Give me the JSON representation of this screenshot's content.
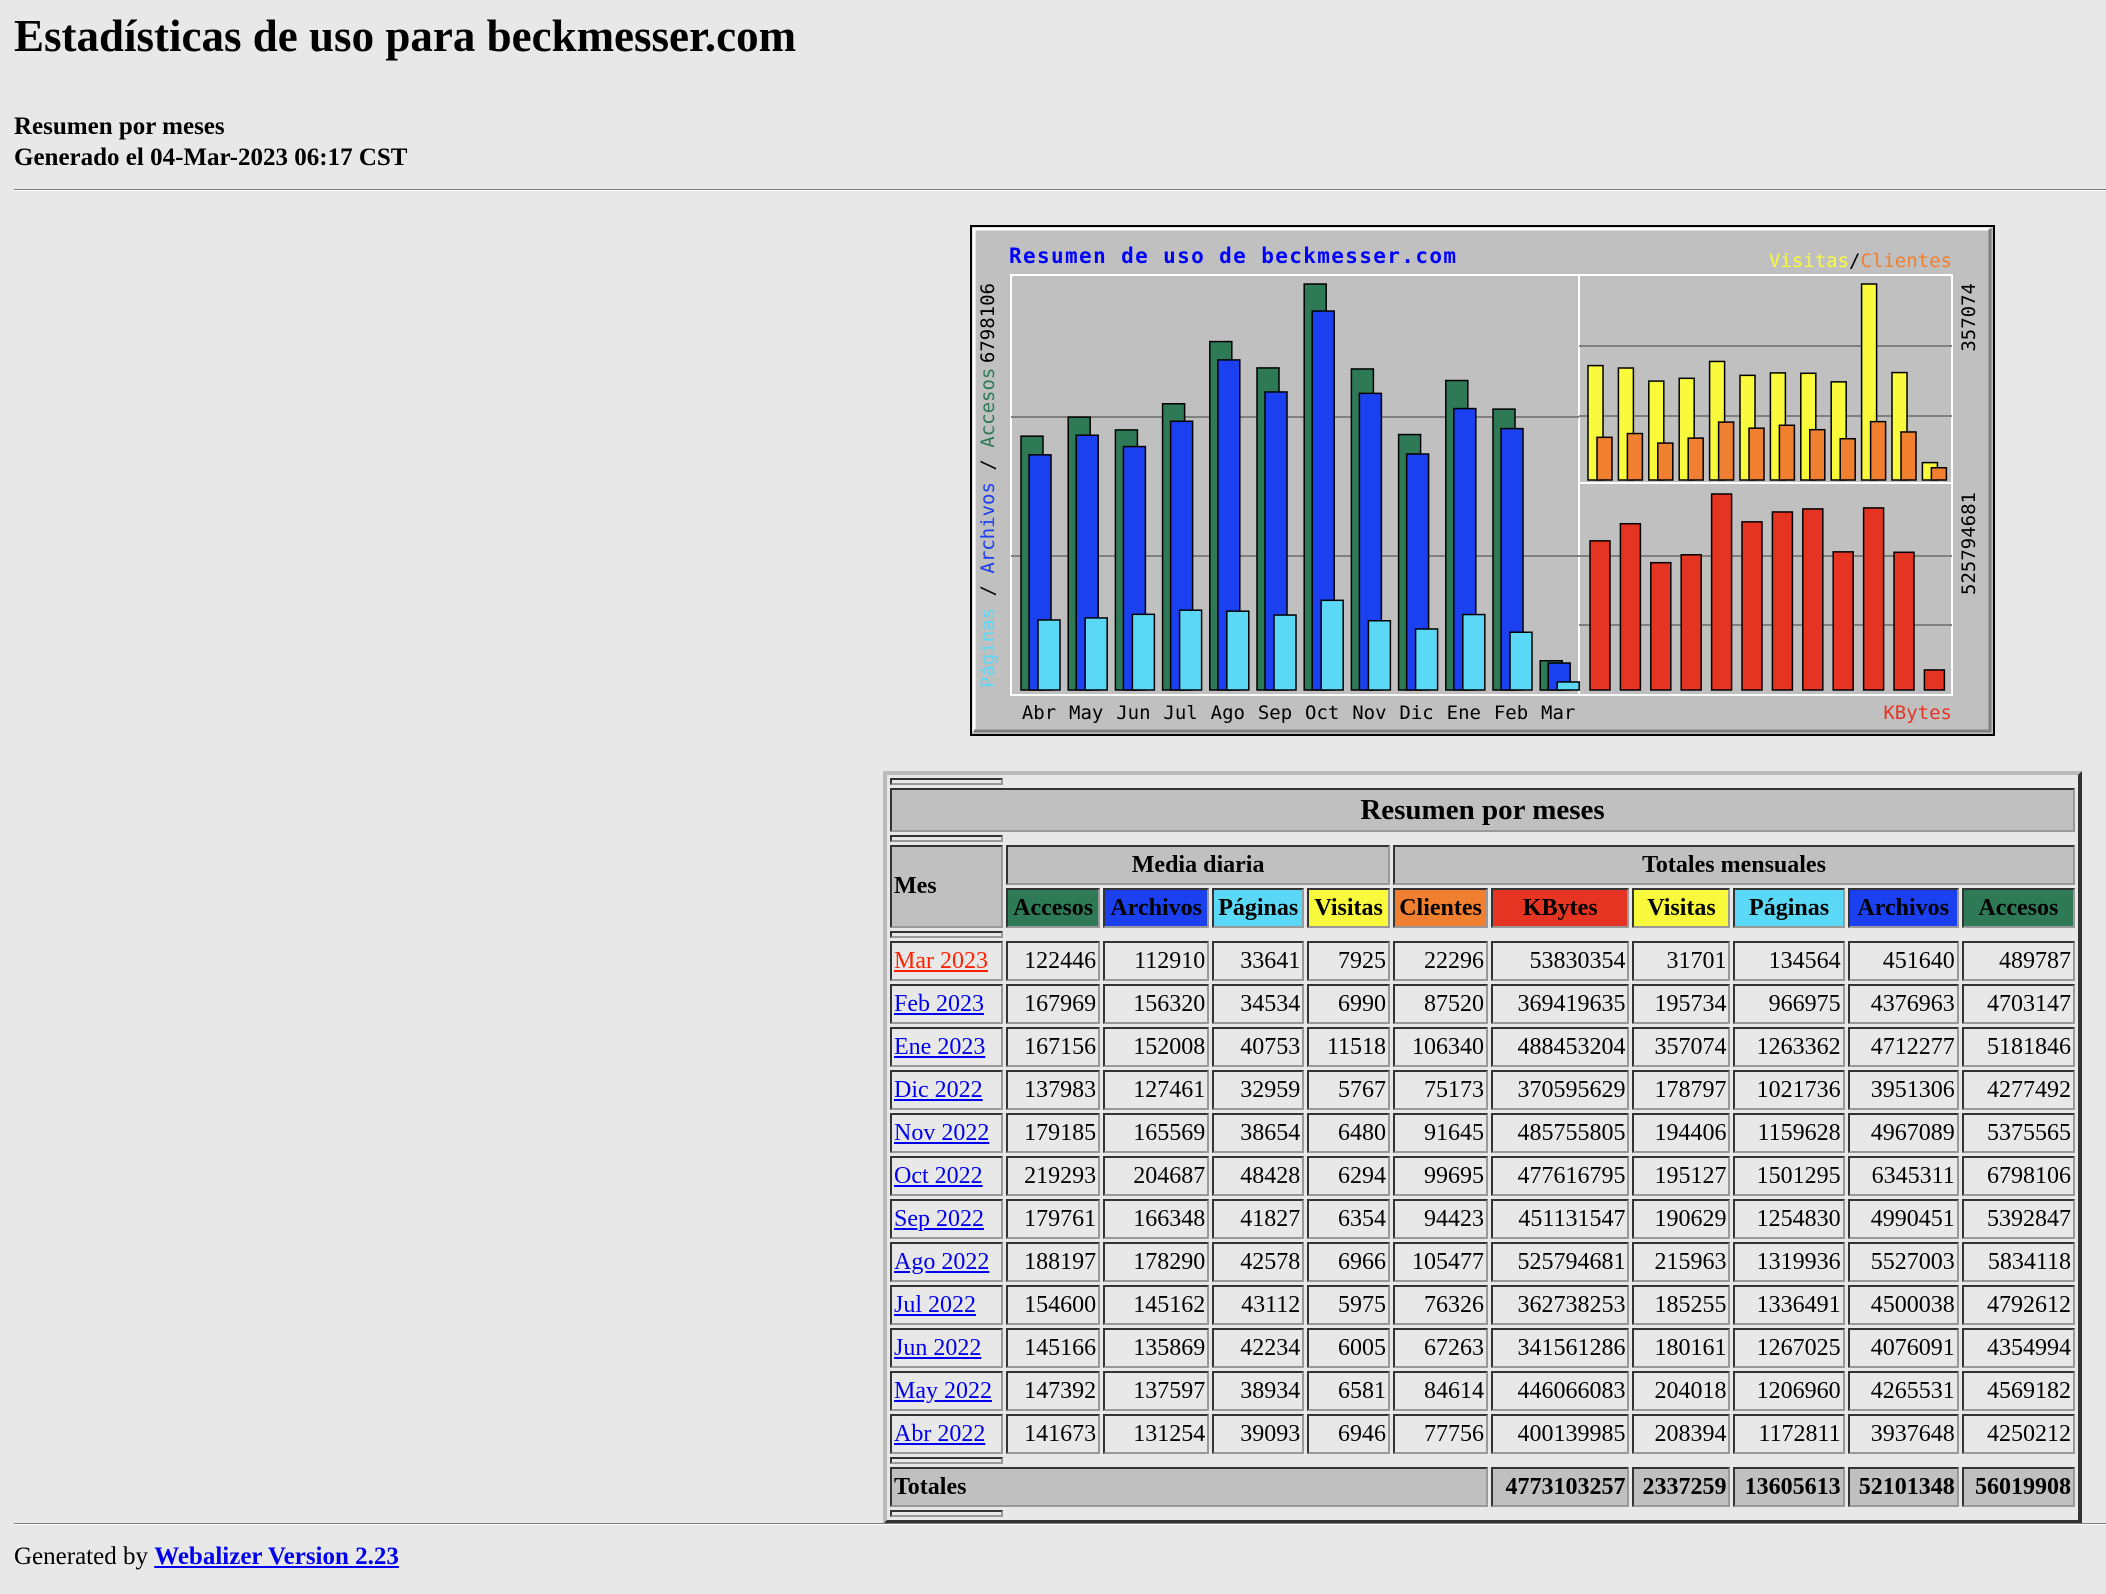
{
  "header": {
    "title": "Estadísticas de uso para beckmesser.com",
    "subtitle": "Resumen por meses",
    "generated": "Generado el 04-Mar-2023 06:17 CST"
  },
  "colors": {
    "accesos": "#2E7A57",
    "archivos": "#1A40F0",
    "paginas": "#5AD8F5",
    "visitas": "#FAFA3C",
    "clientes": "#F08030",
    "kbytes": "#E53522",
    "background": "#E8E8E8",
    "chart_bg": "#C0C0C0",
    "current_month_link": "#FF2200",
    "link": "#0000EE"
  },
  "chart_data": {
    "type": "bar",
    "title": "Resumen de uso de beckmesser.com",
    "categories": [
      "Abr",
      "May",
      "Jun",
      "Jul",
      "Ago",
      "Sep",
      "Oct",
      "Nov",
      "Dic",
      "Ene",
      "Feb",
      "Mar"
    ],
    "left_axis": {
      "labels": [
        "Páginas",
        "Archivos",
        "Accesos"
      ],
      "max_label": "6798106",
      "max": 6798106
    },
    "visits_axis": {
      "labels": [
        "Visitas",
        "Clientes"
      ],
      "max_label": "357074",
      "max": 357074
    },
    "kbytes_axis": {
      "label": "KBytes",
      "max_label": "525794681",
      "max": 525794681
    },
    "grid": true,
    "series": [
      {
        "name": "Accesos",
        "values": [
          4250212,
          4569182,
          4354994,
          4792612,
          5834118,
          5392847,
          6798106,
          5375565,
          4277492,
          5181846,
          4703147,
          489787
        ]
      },
      {
        "name": "Archivos",
        "values": [
          3937648,
          4265531,
          4076091,
          4500038,
          5527003,
          4990451,
          6345311,
          4967089,
          3951306,
          4712277,
          4376963,
          451640
        ]
      },
      {
        "name": "Páginas",
        "values": [
          1172811,
          1206960,
          1267025,
          1336491,
          1319936,
          1254830,
          1501295,
          1159628,
          1021736,
          1263362,
          966975,
          134564
        ]
      },
      {
        "name": "Visitas",
        "values": [
          208394,
          204018,
          180161,
          185255,
          215963,
          190629,
          195127,
          194406,
          178797,
          357074,
          195734,
          31701
        ]
      },
      {
        "name": "Clientes",
        "values": [
          77756,
          84614,
          67263,
          76326,
          105477,
          94423,
          99695,
          91645,
          75173,
          106340,
          87520,
          22296
        ]
      },
      {
        "name": "KBytes",
        "values": [
          400139985,
          446066083,
          341561286,
          362738253,
          525794681,
          451131547,
          477616795,
          485755805,
          370595629,
          488453204,
          369419635,
          53830354
        ]
      }
    ]
  },
  "table": {
    "title": "Resumen por meses",
    "mes_label": "Mes",
    "group_daily": "Media diaria",
    "group_monthly": "Totales mensuales",
    "columns": [
      "Accesos",
      "Archivos",
      "Páginas",
      "Visitas",
      "Clientes",
      "KBytes",
      "Visitas",
      "Páginas",
      "Archivos",
      "Accesos"
    ],
    "rows": [
      {
        "month": "Mar 2023",
        "current": true,
        "values": [
          "122446",
          "112910",
          "33641",
          "7925",
          "22296",
          "53830354",
          "31701",
          "134564",
          "451640",
          "489787"
        ]
      },
      {
        "month": "Feb 2023",
        "values": [
          "167969",
          "156320",
          "34534",
          "6990",
          "87520",
          "369419635",
          "195734",
          "966975",
          "4376963",
          "4703147"
        ]
      },
      {
        "month": "Ene 2023",
        "values": [
          "167156",
          "152008",
          "40753",
          "11518",
          "106340",
          "488453204",
          "357074",
          "1263362",
          "4712277",
          "5181846"
        ]
      },
      {
        "month": "Dic 2022",
        "values": [
          "137983",
          "127461",
          "32959",
          "5767",
          "75173",
          "370595629",
          "178797",
          "1021736",
          "3951306",
          "4277492"
        ]
      },
      {
        "month": "Nov 2022",
        "values": [
          "179185",
          "165569",
          "38654",
          "6480",
          "91645",
          "485755805",
          "194406",
          "1159628",
          "4967089",
          "5375565"
        ]
      },
      {
        "month": "Oct 2022",
        "values": [
          "219293",
          "204687",
          "48428",
          "6294",
          "99695",
          "477616795",
          "195127",
          "1501295",
          "6345311",
          "6798106"
        ]
      },
      {
        "month": "Sep 2022",
        "values": [
          "179761",
          "166348",
          "41827",
          "6354",
          "94423",
          "451131547",
          "190629",
          "1254830",
          "4990451",
          "5392847"
        ]
      },
      {
        "month": "Ago 2022",
        "values": [
          "188197",
          "178290",
          "42578",
          "6966",
          "105477",
          "525794681",
          "215963",
          "1319936",
          "5527003",
          "5834118"
        ]
      },
      {
        "month": "Jul 2022",
        "values": [
          "154600",
          "145162",
          "43112",
          "5975",
          "76326",
          "362738253",
          "185255",
          "1336491",
          "4500038",
          "4792612"
        ]
      },
      {
        "month": "Jun 2022",
        "values": [
          "145166",
          "135869",
          "42234",
          "6005",
          "67263",
          "341561286",
          "180161",
          "1267025",
          "4076091",
          "4354994"
        ]
      },
      {
        "month": "May 2022",
        "values": [
          "147392",
          "137597",
          "38934",
          "6581",
          "84614",
          "446066083",
          "204018",
          "1206960",
          "4265531",
          "4569182"
        ]
      },
      {
        "month": "Abr 2022",
        "values": [
          "141673",
          "131254",
          "39093",
          "6946",
          "77756",
          "400139985",
          "208394",
          "1172811",
          "3937648",
          "4250212"
        ]
      }
    ],
    "totals_label": "Totales",
    "totals": [
      "4773103257",
      "2337259",
      "13605613",
      "52101348",
      "56019908"
    ]
  },
  "footer": {
    "prefix": "Generated by",
    "link": "Webalizer Version 2.23"
  }
}
